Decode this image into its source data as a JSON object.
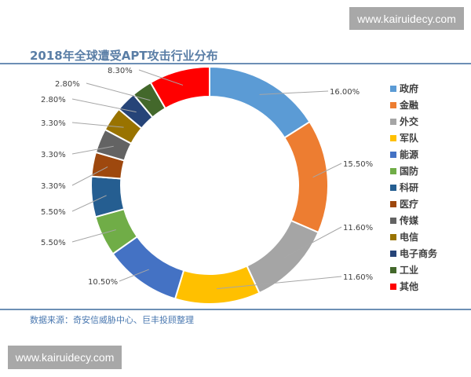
{
  "watermark": "www.kairuidecy.com",
  "chart_data": {
    "type": "pie",
    "style": "donut",
    "title": "2018年全球遭受APT攻击行业分布",
    "source": "数据来源：奇安信威胁中心、巨丰投顾整理",
    "legend_position": "right",
    "categories": [
      "政府",
      "金融",
      "外交",
      "军队",
      "能源",
      "国防",
      "科研",
      "医疗",
      "传媒",
      "电信",
      "电子商务",
      "工业",
      "其他"
    ],
    "values": [
      16.0,
      15.5,
      11.6,
      11.6,
      10.5,
      5.5,
      5.5,
      3.3,
      3.3,
      3.3,
      2.8,
      2.8,
      8.3
    ],
    "labels": [
      "16.00%",
      "15.50%",
      "11.60%",
      "11.60%",
      "10.50%",
      "5.50%",
      "5.50%",
      "3.30%",
      "3.30%",
      "3.30%",
      "2.80%",
      "2.80%",
      "8.30%"
    ],
    "colors": [
      "#5b9bd5",
      "#ed7d31",
      "#a5a5a5",
      "#ffc000",
      "#4472c4",
      "#70ad47",
      "#255e91",
      "#9e480e",
      "#636363",
      "#997300",
      "#264478",
      "#43682b",
      "#ff0000"
    ]
  }
}
